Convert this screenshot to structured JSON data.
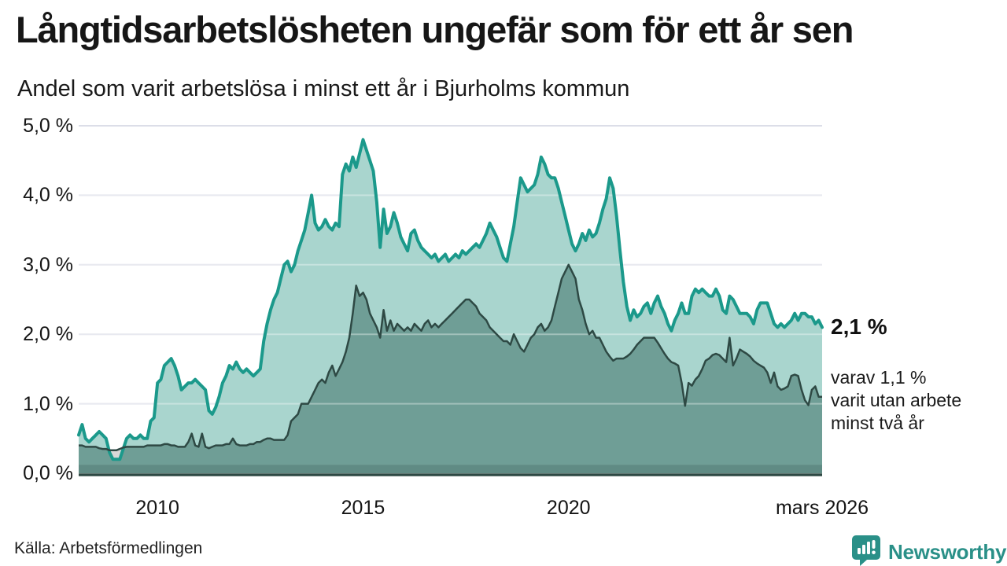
{
  "title": "Långtidsarbetslösheten ungefär som för ett år sen",
  "subtitle": "Andel som varit arbetslösa i minst ett år i Bjurholms kommun",
  "annotation": {
    "value_label": "2,1 %",
    "detail_lines": [
      "varav 1,1 %",
      "varit utan arbete",
      "minst två år"
    ]
  },
  "source": "Källa: Arbetsförmedlingen",
  "brand": {
    "name": "Newsworthy",
    "icon": "speech-bubble-bar-chart-icon",
    "color": "#2a9088"
  },
  "y_axis": {
    "ticks": [
      {
        "label": "5,0 %",
        "value": 5
      },
      {
        "label": "4,0 %",
        "value": 4
      },
      {
        "label": "3,0 %",
        "value": 3
      },
      {
        "label": "2,0 %",
        "value": 2
      },
      {
        "label": "1,0 %",
        "value": 1
      },
      {
        "label": "0,0 %",
        "value": 0
      }
    ]
  },
  "x_axis": {
    "ticks": [
      {
        "label": "2010",
        "month_index": 23
      },
      {
        "label": "2015",
        "month_index": 83
      },
      {
        "label": "2020",
        "month_index": 143
      },
      {
        "label": "mars 2026",
        "month_index": 217
      }
    ]
  },
  "chart_data": {
    "type": "area",
    "title": "Andel som varit arbetslösa i minst ett år i Bjurholms kommun",
    "unit": "%",
    "ylim": [
      0,
      5
    ],
    "grid": true,
    "x_range": {
      "start": "2008-02",
      "end": "2026-03",
      "step": "month"
    },
    "colors": {
      "grid": "#dcdee8",
      "fill1": "#a9d5ce",
      "fill2": "#6f9e96",
      "gap_fill": "#d8d8d8",
      "line1": "#1b998b",
      "line2": "#2e4944",
      "band": "rgba(46,73,68,0.22)"
    },
    "series": [
      {
        "name": "Andel arbetslösa minst ett år",
        "latest_value": 2.1,
        "values": [
          0.55,
          0.7,
          0.5,
          0.45,
          0.5,
          0.55,
          0.6,
          0.55,
          0.5,
          0.3,
          0.2,
          0.2,
          0.2,
          0.35,
          0.5,
          0.55,
          0.5,
          0.5,
          0.55,
          0.5,
          0.5,
          0.75,
          0.8,
          1.3,
          1.35,
          1.55,
          1.6,
          1.65,
          1.55,
          1.4,
          1.2,
          1.25,
          1.3,
          1.3,
          1.35,
          1.3,
          1.25,
          1.2,
          0.9,
          0.85,
          0.95,
          1.1,
          1.3,
          1.4,
          1.55,
          1.5,
          1.6,
          1.5,
          1.45,
          1.5,
          1.45,
          1.4,
          1.45,
          1.5,
          1.9,
          2.15,
          2.35,
          2.5,
          2.6,
          2.8,
          3.0,
          3.05,
          2.9,
          3.0,
          3.2,
          3.35,
          3.5,
          3.75,
          4.0,
          3.6,
          3.5,
          3.55,
          3.65,
          3.55,
          3.5,
          3.6,
          3.55,
          4.3,
          4.45,
          4.35,
          4.55,
          4.4,
          4.6,
          4.8,
          4.65,
          4.5,
          4.35,
          3.9,
          3.25,
          3.8,
          3.45,
          3.55,
          3.75,
          3.6,
          3.4,
          3.3,
          3.2,
          3.45,
          3.5,
          3.35,
          3.25,
          3.2,
          3.15,
          3.1,
          3.15,
          3.05,
          3.1,
          3.15,
          3.05,
          3.1,
          3.15,
          3.1,
          3.2,
          3.15,
          3.2,
          3.25,
          3.3,
          3.25,
          3.35,
          3.45,
          3.6,
          3.5,
          3.4,
          3.25,
          3.1,
          3.05,
          3.3,
          3.55,
          3.9,
          4.25,
          4.15,
          4.05,
          4.1,
          4.15,
          4.3,
          4.55,
          4.45,
          4.3,
          4.25,
          4.25,
          4.1,
          3.9,
          3.7,
          3.5,
          3.3,
          3.2,
          3.3,
          3.45,
          3.35,
          3.5,
          3.4,
          3.45,
          3.6,
          3.8,
          3.95,
          4.25,
          4.1,
          3.7,
          3.2,
          2.75,
          2.4,
          2.2,
          2.35,
          2.25,
          2.3,
          2.4,
          2.45,
          2.3,
          2.45,
          2.55,
          2.4,
          2.3,
          2.15,
          2.05,
          2.2,
          2.3,
          2.45,
          2.3,
          2.3,
          2.55,
          2.65,
          2.6,
          2.65,
          2.6,
          2.55,
          2.55,
          2.65,
          2.55,
          2.35,
          2.3,
          2.55,
          2.5,
          2.4,
          2.3,
          2.3,
          2.3,
          2.25,
          2.15,
          2.35,
          2.45,
          2.45,
          2.45,
          2.3,
          2.15,
          2.1,
          2.15,
          2.1,
          2.15,
          2.2,
          2.3,
          2.2,
          2.3,
          2.3,
          2.25,
          2.25,
          2.15,
          2.2,
          2.1
        ]
      },
      {
        "name": "varav utan arbete minst två år",
        "latest_value": 1.1,
        "values": [
          0.4,
          0.4,
          0.38,
          0.38,
          0.38,
          0.38,
          0.36,
          0.35,
          0.35,
          0.33,
          0.33,
          0.33,
          0.35,
          0.37,
          0.38,
          0.38,
          0.38,
          0.38,
          0.38,
          0.38,
          0.4,
          0.4,
          0.4,
          0.4,
          0.4,
          0.42,
          0.42,
          0.4,
          0.4,
          0.38,
          0.38,
          0.38,
          0.45,
          0.57,
          0.4,
          0.38,
          0.57,
          0.38,
          0.36,
          0.38,
          0.4,
          0.4,
          0.4,
          0.42,
          0.42,
          0.5,
          0.42,
          0.4,
          0.4,
          0.4,
          0.42,
          0.42,
          0.45,
          0.45,
          0.48,
          0.5,
          0.5,
          0.48,
          0.48,
          0.48,
          0.48,
          0.55,
          0.75,
          0.8,
          0.85,
          1.0,
          1.0,
          1.0,
          1.1,
          1.2,
          1.3,
          1.35,
          1.3,
          1.45,
          1.55,
          1.4,
          1.5,
          1.6,
          1.75,
          1.95,
          2.3,
          2.7,
          2.55,
          2.6,
          2.5,
          2.3,
          2.2,
          2.1,
          1.95,
          2.35,
          2.05,
          2.2,
          2.05,
          2.15,
          2.1,
          2.05,
          2.1,
          2.05,
          2.15,
          2.1,
          2.05,
          2.15,
          2.2,
          2.1,
          2.15,
          2.1,
          2.15,
          2.2,
          2.25,
          2.3,
          2.35,
          2.4,
          2.45,
          2.5,
          2.5,
          2.45,
          2.4,
          2.3,
          2.25,
          2.2,
          2.1,
          2.05,
          2.0,
          1.95,
          1.9,
          1.9,
          1.85,
          2.0,
          1.9,
          1.8,
          1.75,
          1.85,
          1.95,
          2.0,
          2.1,
          2.15,
          2.05,
          2.1,
          2.2,
          2.4,
          2.6,
          2.8,
          2.9,
          3.0,
          2.9,
          2.8,
          2.5,
          2.35,
          2.15,
          2.0,
          2.05,
          1.95,
          1.95,
          1.85,
          1.75,
          1.68,
          1.62,
          1.65,
          1.65,
          1.65,
          1.68,
          1.72,
          1.78,
          1.85,
          1.9,
          1.95,
          1.95,
          1.95,
          1.95,
          1.88,
          1.8,
          1.72,
          1.65,
          1.6,
          1.58,
          1.55,
          1.3,
          0.97,
          1.3,
          1.26,
          1.35,
          1.4,
          1.5,
          1.62,
          1.65,
          1.7,
          1.72,
          1.7,
          1.65,
          1.6,
          1.95,
          1.55,
          1.65,
          1.78,
          1.75,
          1.72,
          1.68,
          1.62,
          1.58,
          1.55,
          1.52,
          1.45,
          1.3,
          1.45,
          1.25,
          1.2,
          1.22,
          1.25,
          1.4,
          1.42,
          1.4,
          1.2,
          1.05,
          0.98,
          1.2,
          1.25,
          1.1,
          1.1
        ]
      }
    ]
  }
}
